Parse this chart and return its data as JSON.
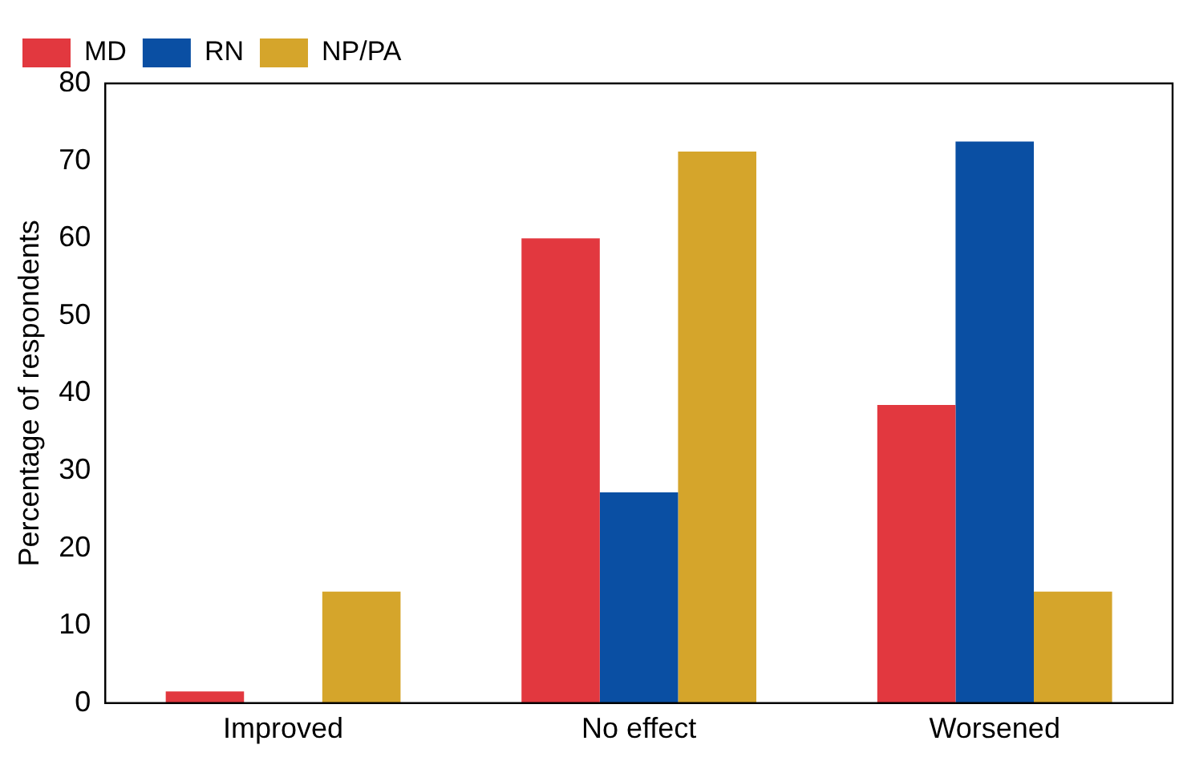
{
  "chart_data": {
    "type": "bar",
    "ylabel": "Percentage of respondents",
    "categories": [
      "Improved",
      "No effect",
      "Worsened"
    ],
    "series": [
      {
        "name": "MD",
        "color": "#e2383f",
        "values": [
          1.5,
          60,
          38.5
        ]
      },
      {
        "name": "RN",
        "color": "#0a4fa3",
        "values": [
          0,
          27.2,
          72.5
        ]
      },
      {
        "name": "NP/PA",
        "color": "#d5a52b",
        "values": [
          14.4,
          71.2,
          14.4
        ]
      }
    ],
    "ylim": [
      0,
      80
    ],
    "yticks": [
      0,
      10,
      20,
      30,
      40,
      50,
      60,
      70,
      80
    ],
    "grid": false,
    "legend": "top left"
  }
}
